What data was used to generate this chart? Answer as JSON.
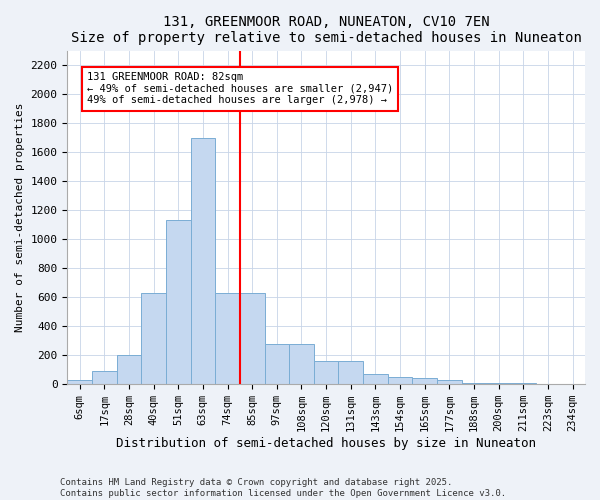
{
  "title1": "131, GREENMOOR ROAD, NUNEATON, CV10 7EN",
  "title2": "Size of property relative to semi-detached houses in Nuneaton",
  "xlabel": "Distribution of semi-detached houses by size in Nuneaton",
  "ylabel": "Number of semi-detached properties",
  "footnote1": "Contains HM Land Registry data © Crown copyright and database right 2025.",
  "footnote2": "Contains public sector information licensed under the Open Government Licence v3.0.",
  "categories": [
    "6sqm",
    "17sqm",
    "28sqm",
    "40sqm",
    "51sqm",
    "63sqm",
    "74sqm",
    "85sqm",
    "97sqm",
    "108sqm",
    "120sqm",
    "131sqm",
    "143sqm",
    "154sqm",
    "165sqm",
    "177sqm",
    "188sqm",
    "200sqm",
    "211sqm",
    "223sqm",
    "234sqm"
  ],
  "bar_heights": [
    30,
    90,
    200,
    630,
    1130,
    1700,
    630,
    630,
    280,
    280,
    160,
    160,
    70,
    50,
    40,
    30,
    10,
    5,
    5,
    2,
    2
  ],
  "bar_color": "#c5d8f0",
  "bar_edge_color": "#7aadd4",
  "vline_color": "red",
  "annotation_text": "131 GREENMOOR ROAD: 82sqm\n← 49% of semi-detached houses are smaller (2,947)\n49% of semi-detached houses are larger (2,978) →",
  "annotation_box_color": "white",
  "annotation_box_edge_color": "red",
  "ylim": [
    0,
    2300
  ],
  "yticks": [
    0,
    200,
    400,
    600,
    800,
    1000,
    1200,
    1400,
    1600,
    1800,
    2000,
    2200
  ],
  "bg_color": "#eef2f8",
  "plot_bg_color": "#ffffff",
  "grid_color": "#c8d4e8"
}
